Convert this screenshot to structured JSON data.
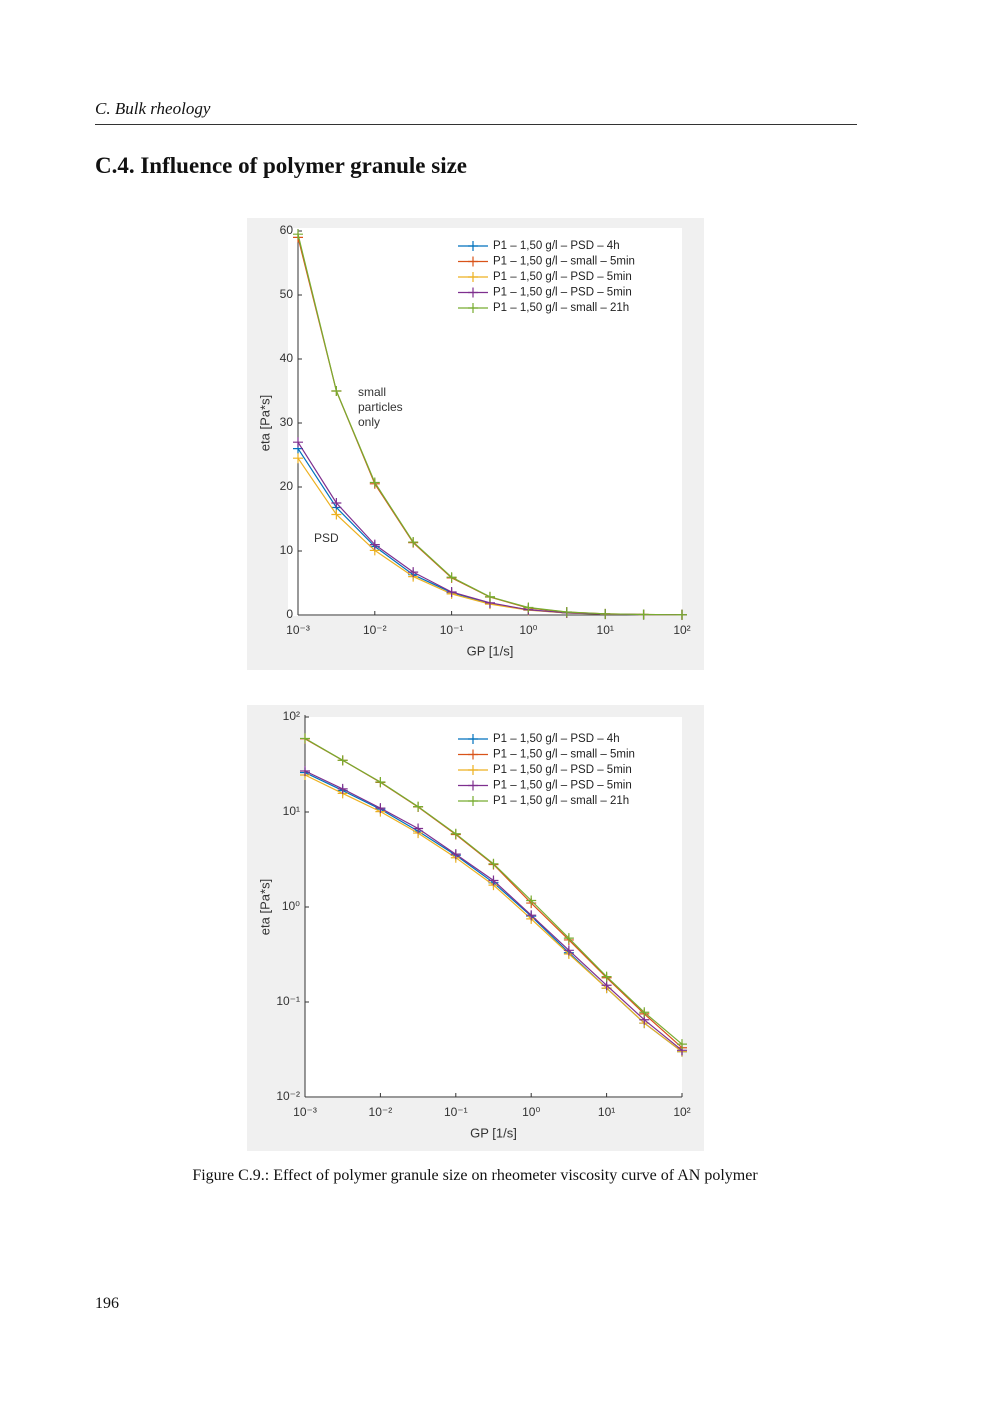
{
  "header": "C. Bulk rheology",
  "section_title": "C.4. Influence of polymer granule size",
  "chart_data": [
    {
      "type": "line",
      "xscale": "log",
      "yscale": "linear",
      "xlabel": "GP [1/s]",
      "ylabel": "eta [Pa*s]",
      "legend": "northeast",
      "grid": false,
      "xlim": [
        0.001,
        100
      ],
      "xticks": [
        {
          "value": 0.001,
          "label": "10⁻³"
        },
        {
          "value": 0.01,
          "label": "10⁻²"
        },
        {
          "value": 0.1,
          "label": "10⁻¹"
        },
        {
          "value": 1,
          "label": "10⁰"
        },
        {
          "value": 10,
          "label": "10¹"
        },
        {
          "value": 100,
          "label": "10²"
        }
      ],
      "ylim": [
        0,
        60
      ],
      "yticks": [
        0,
        10,
        20,
        30,
        40,
        50,
        60
      ],
      "annotations": [
        [
          "small",
          "particles",
          "only"
        ],
        [
          "PSD"
        ]
      ],
      "x": [
        0.001,
        0.00316,
        0.01,
        0.0316,
        0.1,
        0.316,
        1,
        3.16,
        10,
        31.6,
        100
      ],
      "series": [
        {
          "name": "P1 – 1,50 g/l – PSD – 4h",
          "color": "#0072bd",
          "values": [
            26,
            16.8,
            10.7,
            6.3,
            3.5,
            1.8,
            0.8,
            0.33,
            0.14,
            0.06,
            0.03
          ]
        },
        {
          "name": "P1 – 1,50 g/l – small – 5min",
          "color": "#d95319",
          "values": [
            59,
            35,
            20.5,
            11.3,
            5.8,
            2.8,
            1.1,
            0.45,
            0.18,
            0.075,
            0.033
          ]
        },
        {
          "name": "P1 – 1,50 g/l – PSD – 5min",
          "color": "#edb120",
          "values": [
            24.5,
            15.7,
            10.1,
            6,
            3.3,
            1.7,
            0.75,
            0.32,
            0.14,
            0.06,
            0.03
          ]
        },
        {
          "name": "P1 – 1,50 g/l – PSD – 5min",
          "color": "#7e2f8e",
          "values": [
            27,
            17.5,
            11,
            6.7,
            3.6,
            1.9,
            0.82,
            0.35,
            0.15,
            0.065,
            0.031
          ]
        },
        {
          "name": "P1 – 1,50 g/l – small – 21h",
          "color": "#77ac30",
          "values": [
            59.5,
            35,
            20.7,
            11.4,
            5.9,
            2.85,
            1.17,
            0.47,
            0.185,
            0.078,
            0.036
          ]
        }
      ]
    },
    {
      "type": "line",
      "xscale": "log",
      "yscale": "log",
      "xlabel": "GP [1/s]",
      "ylabel": "eta [Pa*s]",
      "legend": "northeast",
      "grid": false,
      "xlim": [
        0.001,
        100
      ],
      "xticks": [
        {
          "value": 0.001,
          "label": "10⁻³"
        },
        {
          "value": 0.01,
          "label": "10⁻²"
        },
        {
          "value": 0.1,
          "label": "10⁻¹"
        },
        {
          "value": 1,
          "label": "10⁰"
        },
        {
          "value": 10,
          "label": "10¹"
        },
        {
          "value": 100,
          "label": "10²"
        }
      ],
      "ylim": [
        0.01,
        100
      ],
      "yticks": [
        {
          "value": 0.01,
          "label": "10⁻²"
        },
        {
          "value": 0.1,
          "label": "10⁻¹"
        },
        {
          "value": 1,
          "label": "10⁰"
        },
        {
          "value": 10,
          "label": "10¹"
        },
        {
          "value": 100,
          "label": "10²"
        }
      ],
      "x": [
        0.001,
        0.00316,
        0.01,
        0.0316,
        0.1,
        0.316,
        1,
        3.16,
        10,
        31.6,
        100
      ],
      "series": [
        {
          "name": "P1 – 1,50 g/l – PSD – 4h",
          "color": "#0072bd",
          "values": [
            26,
            16.8,
            10.7,
            6.3,
            3.5,
            1.8,
            0.8,
            0.33,
            0.14,
            0.06,
            0.03
          ]
        },
        {
          "name": "P1 – 1,50 g/l – small – 5min",
          "color": "#d95319",
          "values": [
            59,
            35,
            20.5,
            11.3,
            5.8,
            2.8,
            1.1,
            0.45,
            0.18,
            0.075,
            0.033
          ]
        },
        {
          "name": "P1 – 1,50 g/l – PSD – 5min",
          "color": "#edb120",
          "values": [
            24.5,
            15.7,
            10.1,
            6,
            3.3,
            1.7,
            0.75,
            0.32,
            0.14,
            0.06,
            0.03
          ]
        },
        {
          "name": "P1 – 1,50 g/l – PSD – 5min",
          "color": "#7e2f8e",
          "values": [
            27,
            17.5,
            11,
            6.7,
            3.6,
            1.9,
            0.82,
            0.35,
            0.15,
            0.065,
            0.031
          ]
        },
        {
          "name": "P1 – 1,50 g/l – small – 21h",
          "color": "#77ac30",
          "values": [
            59.5,
            35,
            20.7,
            11.4,
            5.9,
            2.85,
            1.17,
            0.47,
            0.185,
            0.078,
            0.036
          ]
        }
      ]
    }
  ],
  "caption": "Figure C.9.: Effect of polymer granule size on rheometer viscosity curve of AN polymer",
  "page_number": "196"
}
